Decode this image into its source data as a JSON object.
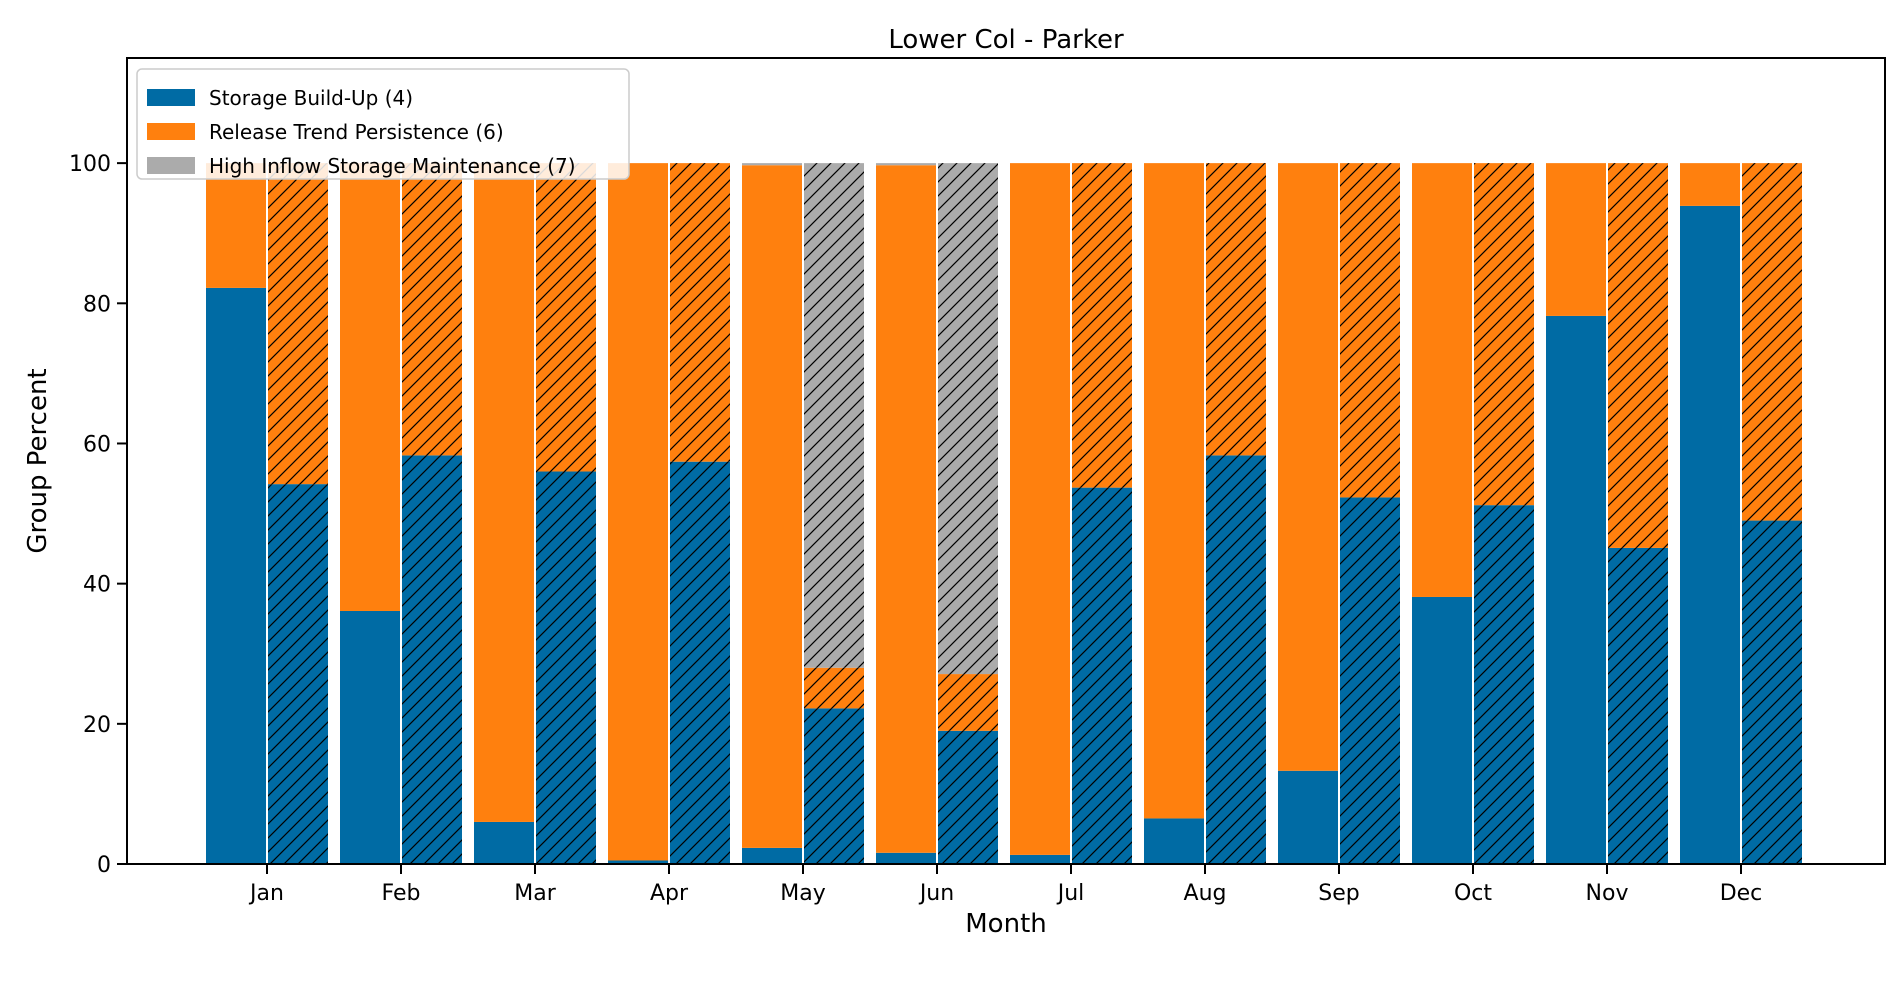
{
  "chart_data": {
    "type": "bar",
    "title": "Lower Col - Parker",
    "xlabel": "Month",
    "ylabel": "Group Percent",
    "ylim": [
      0,
      115
    ],
    "yticks": [
      0,
      20,
      40,
      60,
      80,
      100
    ],
    "grid": false,
    "legend_position": "top-left",
    "stacked": true,
    "categories": [
      "Jan",
      "Feb",
      "Mar",
      "Apr",
      "May",
      "Jun",
      "Jul",
      "Aug",
      "Sep",
      "Oct",
      "Nov",
      "Dec"
    ],
    "bar_groups": [
      {
        "hatched": false,
        "note": "left bar per month"
      },
      {
        "hatched": true,
        "note": "right bar per month"
      }
    ],
    "series": [
      {
        "name": "Storage Build-Up (4)",
        "color": "#006BA4",
        "values_left": [
          82.2,
          36.1,
          6.0,
          0.5,
          2.3,
          1.6,
          1.3,
          6.5,
          13.3,
          38.1,
          78.2,
          93.9
        ],
        "values_right": [
          54.2,
          58.3,
          56.0,
          57.4,
          22.2,
          19.0,
          53.7,
          58.3,
          52.3,
          51.2,
          45.1,
          49.0
        ]
      },
      {
        "name": "Release Trend Persistence (6)",
        "color": "#FF800E",
        "values_left": [
          17.8,
          63.9,
          94.0,
          99.5,
          97.4,
          98.1,
          98.7,
          93.5,
          86.7,
          61.9,
          21.8,
          6.1
        ],
        "values_right": [
          45.8,
          41.7,
          44.0,
          42.6,
          5.8,
          8.1,
          46.3,
          41.7,
          47.7,
          48.8,
          54.9,
          51.0
        ]
      },
      {
        "name": "High Inflow Storage Maintenance (7)",
        "color": "#ABABAB",
        "values_left": [
          0,
          0,
          0,
          0,
          0.3,
          0.3,
          0,
          0,
          0,
          0,
          0,
          0
        ],
        "values_right": [
          0,
          0,
          0,
          0,
          72.0,
          72.9,
          0,
          0,
          0,
          0,
          0,
          0
        ]
      }
    ]
  }
}
